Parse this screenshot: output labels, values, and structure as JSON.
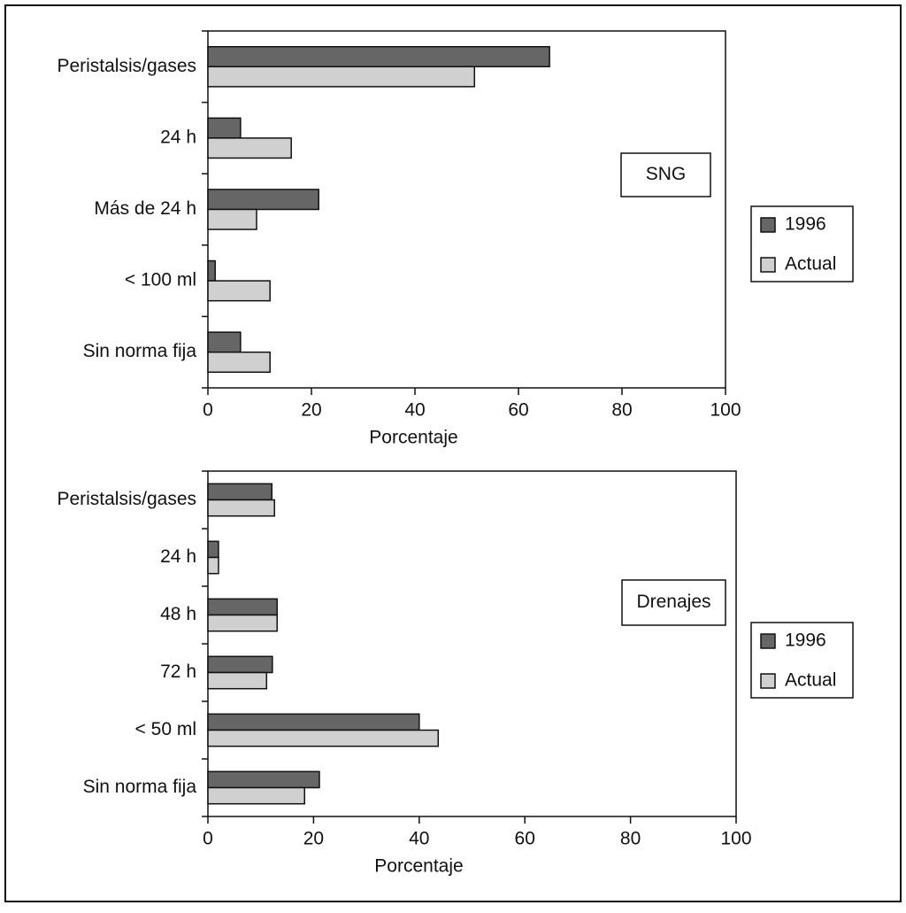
{
  "chart_data": [
    {
      "type": "bar",
      "orientation": "horizontal",
      "categories": [
        "Peristalsis/gases",
        "24 h",
        "Más de 24 h",
        "< 100 ml",
        "Sin norma fija"
      ],
      "series": [
        {
          "name": "1996",
          "color": "#666666",
          "values": [
            66.0,
            6.3,
            21.4,
            1.4,
            6.3
          ]
        },
        {
          "name": "Actual",
          "color": "#d0d0d0",
          "values": [
            51.5,
            16.1,
            9.4,
            12.0,
            12.0
          ]
        }
      ],
      "xlim": [
        0,
        100
      ],
      "xticks": [
        0,
        20,
        40,
        60,
        80,
        100
      ],
      "xlabel": "Porcentaje",
      "annotation": "SNG",
      "legend": "right"
    },
    {
      "type": "bar",
      "orientation": "horizontal",
      "categories": [
        "Peristalsis/gases",
        "24 h",
        "48 h",
        "72 h",
        "< 50 ml",
        "Sin norma fija"
      ],
      "series": [
        {
          "name": "1996",
          "color": "#666666",
          "values": [
            12.1,
            2.0,
            13.1,
            12.2,
            40.0,
            21.1
          ]
        },
        {
          "name": "Actual",
          "color": "#d0d0d0",
          "values": [
            12.6,
            2.0,
            13.1,
            11.1,
            43.6,
            18.3
          ]
        }
      ],
      "xlim": [
        0,
        100
      ],
      "xticks": [
        0,
        20,
        40,
        60,
        80,
        100
      ],
      "xlabel": "Porcentaje",
      "annotation": "Drenajes",
      "legend": "right"
    }
  ]
}
